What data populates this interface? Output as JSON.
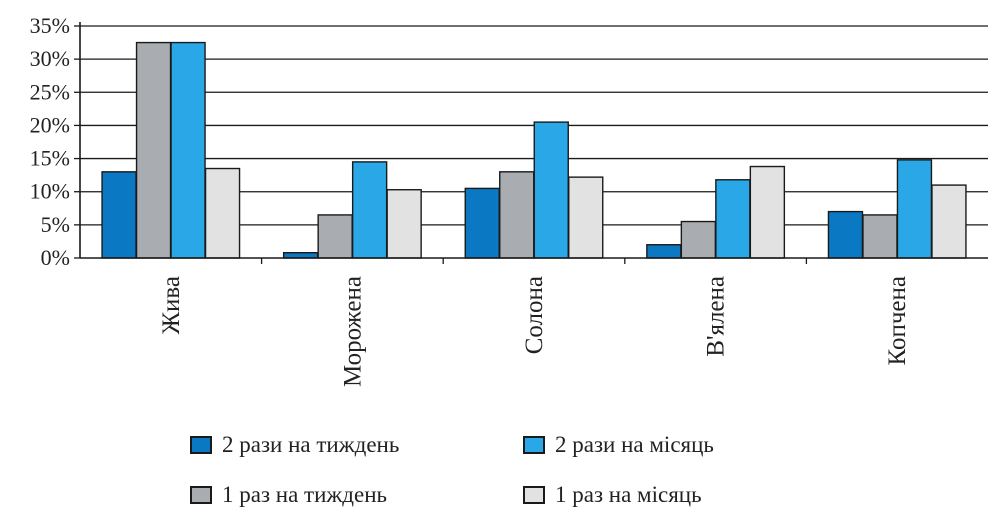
{
  "chart_data": {
    "type": "bar",
    "categories": [
      "Жива",
      "Морожена",
      "Солона",
      "В'ялена",
      "Копчена"
    ],
    "series": [
      {
        "name": "2 рази на тиждень",
        "color": "#0a78c2",
        "values": [
          13,
          0.8,
          10.5,
          2,
          7
        ]
      },
      {
        "name": "1 раз на тиждень",
        "color": "#a9adb1",
        "values": [
          32.5,
          6.5,
          13,
          5.5,
          6.5
        ]
      },
      {
        "name": "2 рази на місяць",
        "color": "#2aa7e6",
        "values": [
          32.5,
          14.5,
          20.5,
          11.8,
          14.8
        ]
      },
      {
        "name": "1 раз на місяць",
        "color": "#e2e2e2",
        "values": [
          13.5,
          10.3,
          12.2,
          13.8,
          11
        ]
      }
    ],
    "yticks": [
      "0%",
      "5%",
      "10%",
      "15%",
      "20%",
      "25%",
      "30%",
      "35%"
    ],
    "ylim": [
      0,
      35
    ],
    "grid": true,
    "legend_position": "bottom"
  }
}
